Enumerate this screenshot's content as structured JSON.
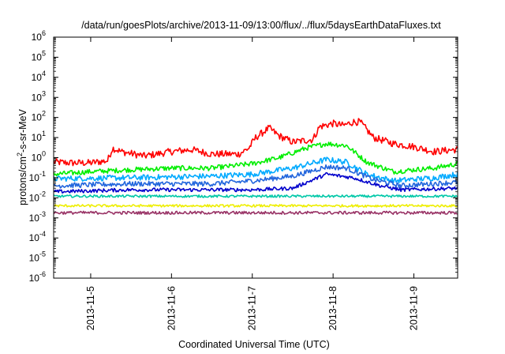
{
  "chart_data": {
    "type": "line",
    "title": "/data/run/goesPlots/archive/2013-11-09/13:00/flux/../flux/5daysEarthDataFluxes.txt",
    "xlabel": "Coordinated Universal Time (UTC)",
    "ylabel": {
      "base": "protons/cm",
      "sup": "2",
      "rest": "-s-sr-MeV"
    },
    "y_scale": "log",
    "ylim": [
      1e-06,
      1000000.0
    ],
    "y_ticks": [
      {
        "value": 1e-06,
        "base": "10",
        "exp": "-6"
      },
      {
        "value": 1e-05,
        "base": "10",
        "exp": "-5"
      },
      {
        "value": 0.0001,
        "base": "10",
        "exp": "-4"
      },
      {
        "value": 0.001,
        "base": "10",
        "exp": "-3"
      },
      {
        "value": 0.01,
        "base": "10",
        "exp": "-2"
      },
      {
        "value": 0.1,
        "base": "10",
        "exp": "-1"
      },
      {
        "value": 1,
        "base": "10",
        "exp": "0"
      },
      {
        "value": 10,
        "base": "10",
        "exp": "1"
      },
      {
        "value": 100,
        "base": "10",
        "exp": "2"
      },
      {
        "value": 1000,
        "base": "10",
        "exp": "3"
      },
      {
        "value": 10000,
        "base": "10",
        "exp": "4"
      },
      {
        "value": 100000,
        "base": "10",
        "exp": "5"
      },
      {
        "value": 1000000,
        "base": "10",
        "exp": "6"
      }
    ],
    "xlim": [
      "2013-11-04 13:00",
      "2013-11-09 13:00"
    ],
    "x_ticks": [
      "2013-11-5",
      "2013-11-6",
      "2013-11-7",
      "2013-11-8",
      "2013-11-9"
    ],
    "x_tick_values": [
      "2013-11-05 00:00",
      "2013-11-06 00:00",
      "2013-11-07 00:00",
      "2013-11-08 00:00",
      "2013-11-09 00:00"
    ],
    "grid": false,
    "legend": "none",
    "series": [
      {
        "color": "#ff0000",
        "noise": 0.35,
        "points": [
          [
            "2013-11-04 13:00",
            0.6
          ],
          [
            "2013-11-04 18:00",
            0.55
          ],
          [
            "2013-11-05 00:00",
            0.55
          ],
          [
            "2013-11-05 05:00",
            0.7
          ],
          [
            "2013-11-05 06:30",
            3.0
          ],
          [
            "2013-11-05 09:00",
            2.0
          ],
          [
            "2013-11-05 16:00",
            1.2
          ],
          [
            "2013-11-06 00:00",
            2.0
          ],
          [
            "2013-11-06 06:00",
            2.5
          ],
          [
            "2013-11-06 12:00",
            1.5
          ],
          [
            "2013-11-06 20:00",
            1.5
          ],
          [
            "2013-11-06 23:00",
            3.0
          ],
          [
            "2013-11-07 01:00",
            10
          ],
          [
            "2013-11-07 05:00",
            30
          ],
          [
            "2013-11-07 08:00",
            12
          ],
          [
            "2013-11-07 12:00",
            6
          ],
          [
            "2013-11-07 18:00",
            8
          ],
          [
            "2013-11-07 20:00",
            35
          ],
          [
            "2013-11-08 00:00",
            50
          ],
          [
            "2013-11-08 03:00",
            40
          ],
          [
            "2013-11-08 06:00",
            60
          ],
          [
            "2013-11-08 08:00",
            60
          ],
          [
            "2013-11-08 12:00",
            10
          ],
          [
            "2013-11-08 18:00",
            5
          ],
          [
            "2013-11-09 00:00",
            3.5
          ],
          [
            "2013-11-09 06:00",
            2
          ],
          [
            "2013-11-09 12:00",
            2.5
          ],
          [
            "2013-11-09 13:00",
            2.5
          ]
        ]
      },
      {
        "color": "#00ee00",
        "noise": 0.25,
        "points": [
          [
            "2013-11-04 13:00",
            0.15
          ],
          [
            "2013-11-05 00:00",
            0.2
          ],
          [
            "2013-11-05 12:00",
            0.25
          ],
          [
            "2013-11-06 00:00",
            0.3
          ],
          [
            "2013-11-06 12:00",
            0.3
          ],
          [
            "2013-11-07 00:00",
            0.5
          ],
          [
            "2013-11-07 08:00",
            1.0
          ],
          [
            "2013-11-07 16:00",
            3.0
          ],
          [
            "2013-11-07 22:00",
            5.0
          ],
          [
            "2013-11-08 04:00",
            4.0
          ],
          [
            "2013-11-08 10:00",
            0.6
          ],
          [
            "2013-11-08 18:00",
            0.2
          ],
          [
            "2013-11-09 00:00",
            0.25
          ],
          [
            "2013-11-09 06:00",
            0.3
          ],
          [
            "2013-11-09 13:00",
            0.5
          ]
        ]
      },
      {
        "color": "#00aaff",
        "noise": 0.28,
        "points": [
          [
            "2013-11-04 13:00",
            0.09
          ],
          [
            "2013-11-05 12:00",
            0.1
          ],
          [
            "2013-11-06 12:00",
            0.12
          ],
          [
            "2013-11-07 00:00",
            0.15
          ],
          [
            "2013-11-07 12:00",
            0.3
          ],
          [
            "2013-11-07 22:00",
            0.8
          ],
          [
            "2013-11-08 04:00",
            0.6
          ],
          [
            "2013-11-08 10:00",
            0.15
          ],
          [
            "2013-11-08 18:00",
            0.07
          ],
          [
            "2013-11-09 06:00",
            0.1
          ],
          [
            "2013-11-09 13:00",
            0.15
          ]
        ]
      },
      {
        "color": "#2266dd",
        "noise": 0.25,
        "points": [
          [
            "2013-11-04 13:00",
            0.04
          ],
          [
            "2013-11-05 12:00",
            0.05
          ],
          [
            "2013-11-06 12:00",
            0.05
          ],
          [
            "2013-11-07 00:00",
            0.07
          ],
          [
            "2013-11-07 12:00",
            0.12
          ],
          [
            "2013-11-07 22:00",
            0.35
          ],
          [
            "2013-11-08 04:00",
            0.3
          ],
          [
            "2013-11-08 12:00",
            0.08
          ],
          [
            "2013-11-08 20:00",
            0.04
          ],
          [
            "2013-11-09 13:00",
            0.06
          ]
        ]
      },
      {
        "color": "#0000cc",
        "noise": 0.18,
        "points": [
          [
            "2013-11-04 13:00",
            0.02
          ],
          [
            "2013-11-05 12:00",
            0.025
          ],
          [
            "2013-11-06 12:00",
            0.025
          ],
          [
            "2013-11-07 00:00",
            0.025
          ],
          [
            "2013-11-07 12:00",
            0.03
          ],
          [
            "2013-11-07 22:00",
            0.15
          ],
          [
            "2013-11-08 06:00",
            0.1
          ],
          [
            "2013-11-08 14:00",
            0.04
          ],
          [
            "2013-11-08 20:00",
            0.025
          ],
          [
            "2013-11-09 13:00",
            0.03
          ]
        ]
      },
      {
        "color": "#00c8a8",
        "noise": 0.12,
        "points": [
          [
            "2013-11-04 13:00",
            0.012
          ],
          [
            "2013-11-09 13:00",
            0.012
          ]
        ]
      },
      {
        "color": "#eeee00",
        "noise": 0.12,
        "points": [
          [
            "2013-11-04 13:00",
            0.004
          ],
          [
            "2013-11-09 13:00",
            0.004
          ]
        ]
      },
      {
        "color": "#993366",
        "noise": 0.15,
        "points": [
          [
            "2013-11-04 13:00",
            0.0018
          ],
          [
            "2013-11-09 13:00",
            0.0018
          ]
        ]
      }
    ]
  }
}
